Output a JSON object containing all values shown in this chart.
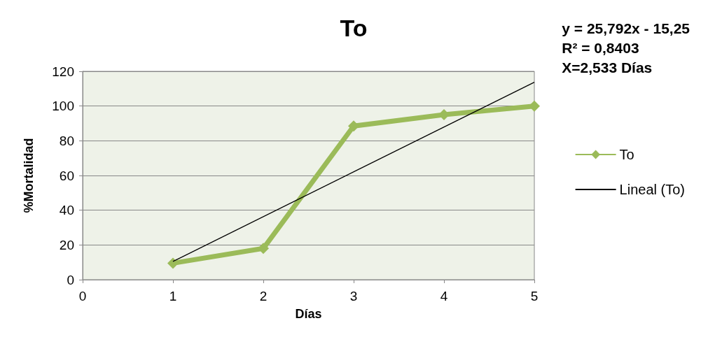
{
  "chart_data": {
    "type": "line",
    "title": "To",
    "xlabel": "Días",
    "ylabel": "%Mortalidad",
    "x": [
      1,
      2,
      3,
      4,
      5
    ],
    "series": [
      {
        "name": "To",
        "color": "#9bbb59",
        "values": [
          9.5,
          18,
          88.5,
          95,
          100
        ],
        "marker": "diamond"
      },
      {
        "name": "Lineal (To)",
        "color": "#000000",
        "x": [
          1,
          5
        ],
        "values": [
          10.5,
          113.7
        ],
        "marker": "none"
      }
    ],
    "xlim": [
      0,
      5
    ],
    "xticks": [
      0,
      1,
      2,
      3,
      4,
      5
    ],
    "ylim": [
      0,
      120
    ],
    "yticks": [
      0,
      20,
      40,
      60,
      80,
      100,
      120
    ],
    "grid": "y",
    "legend": "right",
    "annotations": [
      "y = 25,792x - 15,25",
      "R² = 0,8403",
      "X=2,533 Días"
    ]
  }
}
